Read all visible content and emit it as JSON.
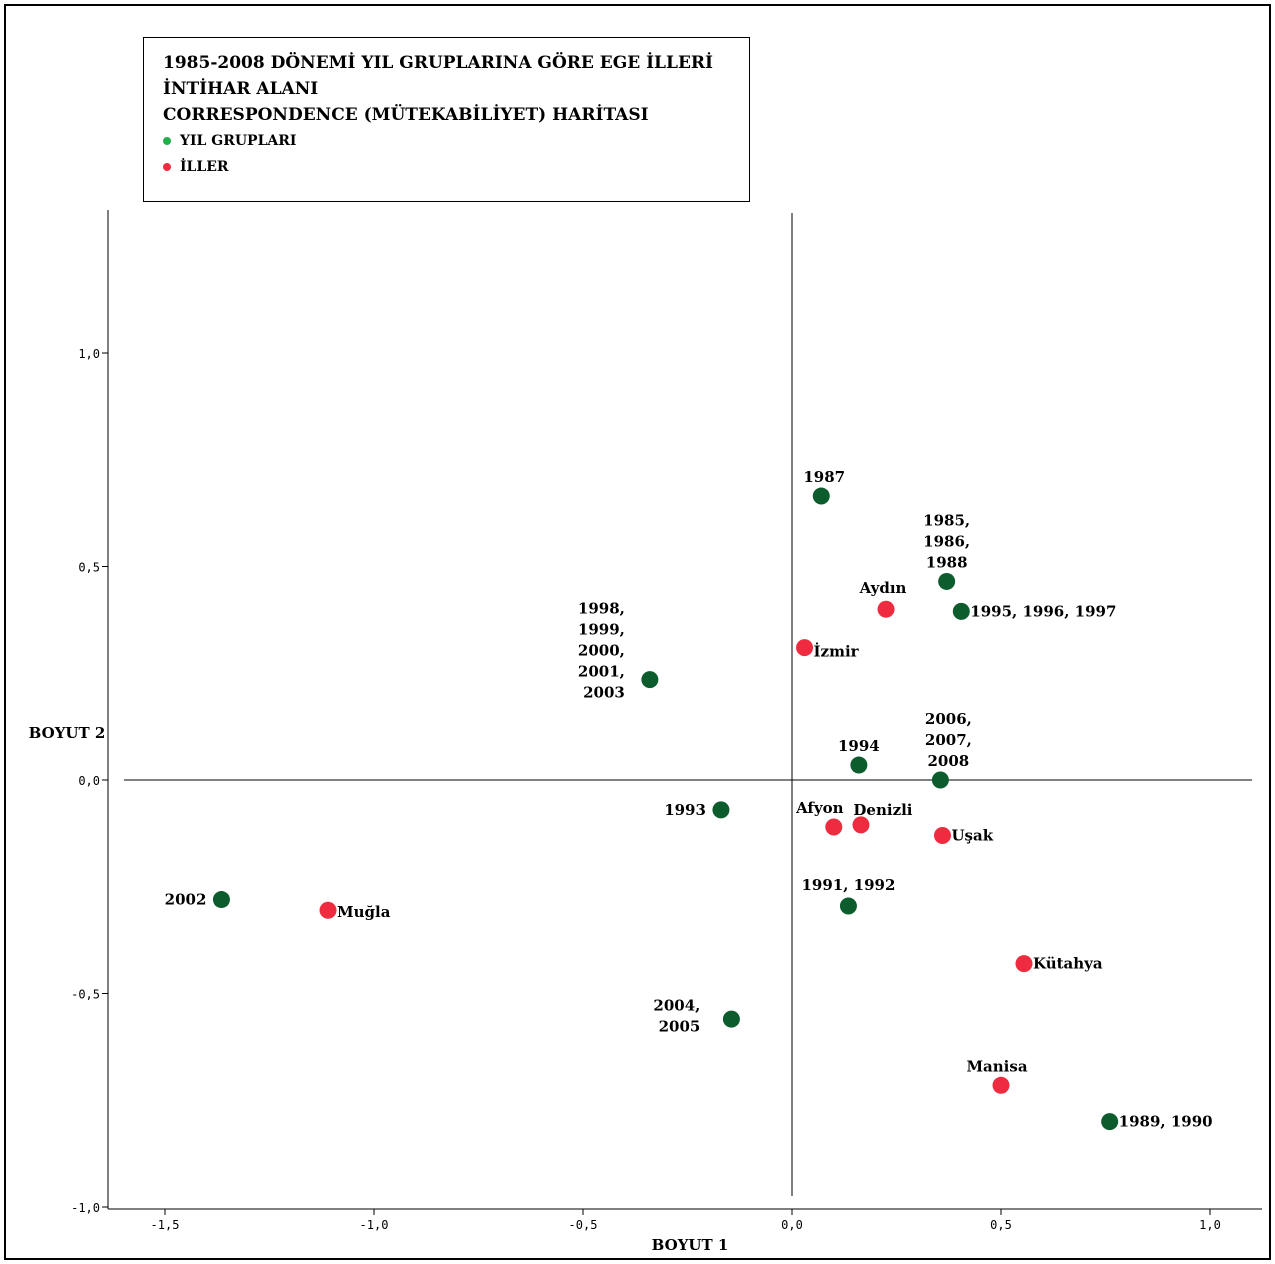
{
  "chart_data": {
    "type": "scatter",
    "title_lines": [
      "1985-2008 DÖNEMİ YIL GRUPLARINA GÖRE EGE İLLERİ",
      "İNTİHAR ALANI",
      "CORRESPONDENCE (MÜTEKABİLİYET) HARİTASI"
    ],
    "xlabel": "BOYUT 1",
    "ylabel": "BOYUT 2",
    "xlim": [
      -1.63,
      1.1
    ],
    "ylim": [
      -1.0,
      1.35
    ],
    "x_ticks": [
      {
        "value": -1.5,
        "label": "-1,5"
      },
      {
        "value": -1.0,
        "label": "-1,0"
      },
      {
        "value": -0.5,
        "label": "-0,5"
      },
      {
        "value": 0.0,
        "label": "0,0"
      },
      {
        "value": 0.5,
        "label": "0,5"
      },
      {
        "value": 1.0,
        "label": "1,0"
      }
    ],
    "y_ticks": [
      {
        "value": 1.0,
        "label": "1,0"
      },
      {
        "value": 0.5,
        "label": "0,5"
      },
      {
        "value": 0.0,
        "label": "0,0"
      },
      {
        "value": -0.5,
        "label": "-0,5"
      },
      {
        "value": -1.0,
        "label": "-1,0"
      }
    ],
    "legend_placement": "top-left",
    "series": [
      {
        "name": "YIL GRUPLARI",
        "color": "#0d5c2e",
        "legend_color": "#22b04b",
        "points": [
          {
            "label": [
              "1987"
            ],
            "x": 0.07,
            "y": 0.665
          },
          {
            "label": [
              "1985,",
              "1986,",
              "1988"
            ],
            "x": 0.37,
            "y": 0.465
          },
          {
            "label": [
              "1995, 1996, 1997"
            ],
            "x": 0.405,
            "y": 0.395
          },
          {
            "label": [
              "1998,",
              "1999,",
              "2000,",
              "2001,",
              "2003"
            ],
            "x": -0.34,
            "y": 0.235
          },
          {
            "label": [
              "1994"
            ],
            "x": 0.16,
            "y": 0.035
          },
          {
            "label": [
              "2006,",
              "2007,",
              "2008"
            ],
            "x": 0.355,
            "y": 0.0
          },
          {
            "label": [
              "1993"
            ],
            "x": -0.17,
            "y": -0.07
          },
          {
            "label": [
              "1991, 1992"
            ],
            "x": 0.135,
            "y": -0.295
          },
          {
            "label": [
              "2002"
            ],
            "x": -1.365,
            "y": -0.28
          },
          {
            "label": [
              "2004,",
              "2005"
            ],
            "x": -0.145,
            "y": -0.56
          },
          {
            "label": [
              "1989, 1990"
            ],
            "x": 0.76,
            "y": -0.8
          }
        ]
      },
      {
        "name": "İLLER",
        "color": "#ef2c3f",
        "legend_color": "#ef2c3f",
        "points": [
          {
            "label": [
              "Aydın"
            ],
            "x": 0.225,
            "y": 0.4
          },
          {
            "label": [
              "İzmir"
            ],
            "x": 0.03,
            "y": 0.31
          },
          {
            "label": [
              "Afyon"
            ],
            "x": 0.1,
            "y": -0.11
          },
          {
            "label": [
              "Denizli"
            ],
            "x": 0.165,
            "y": -0.105
          },
          {
            "label": [
              "Uşak"
            ],
            "x": 0.36,
            "y": -0.13
          },
          {
            "label": [
              "Muğla"
            ],
            "x": -1.11,
            "y": -0.305
          },
          {
            "label": [
              "Kütahya"
            ],
            "x": 0.555,
            "y": -0.43
          },
          {
            "label": [
              "Manisa"
            ],
            "x": 0.5,
            "y": -0.715
          }
        ]
      }
    ]
  }
}
